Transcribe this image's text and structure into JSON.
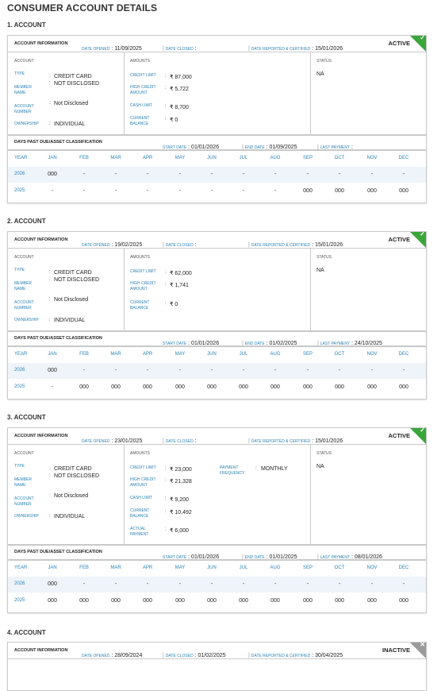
{
  "page_title": "CONSUMER ACCOUNT DETAILS",
  "labels": {
    "account_information": "ACCOUNT INFORMATION",
    "date_opened": "DATE OPENED",
    "date_closed": "DATE CLOSED",
    "date_reported": "DATE REPORTED & CERTIFIED",
    "account_col": "ACCOUNT",
    "amounts_col": "AMOUNTS",
    "status_col": "STATUS",
    "type": "TYPE",
    "member_name": "MEMBER NAME",
    "account_number": "ACCOUNT NUMBER",
    "ownership": "OWNERSHIP",
    "credit_limit": "CREDIT LIMIT",
    "high_credit": "HIGH CREDIT AMOUNT",
    "cash_limit": "CASH LIMIT",
    "current_balance": "CURRENT BALANCE",
    "actual_payment": "ACTUAL PAYMENT",
    "payment_frequency": "PAYMENT FREQUENCY",
    "dpd_title": "DAYS PAST DUE/ASSET CLASSIFICATION",
    "start_date": "START DATE",
    "end_date": "END DATE",
    "last_payment": "LAST PAYMENT",
    "year": "YEAR",
    "months": [
      "JAN",
      "FEB",
      "MAR",
      "APR",
      "MAY",
      "JUN",
      "JUL",
      "AUG",
      "SEP",
      "OCT",
      "NOV",
      "DEC"
    ]
  },
  "accounts": [
    {
      "heading": "1. ACCOUNT",
      "status": "ACTIVE",
      "status_color": "#3aa63a",
      "date_opened": "11/09/2025",
      "date_closed": "",
      "date_reported": "15/01/2026",
      "type": "CREDIT CARD",
      "member_name": "NOT DISCLOSED",
      "account_number": "Not Disclosed",
      "ownership": "INDIVIDUAL",
      "credit_limit": "₹ 87,000",
      "high_credit": "₹ 5,722",
      "cash_limit": "₹ 8,700",
      "current_balance": "₹ 0",
      "status_value": "NA",
      "start_date": "01/01/2026",
      "end_date": "01/09/2025",
      "last_payment": "",
      "dpd": [
        {
          "year": "2026",
          "values": [
            "000",
            "-",
            "-",
            "-",
            "-",
            "-",
            "-",
            "-",
            "-",
            "-",
            "-",
            "-"
          ]
        },
        {
          "year": "2025",
          "values": [
            "-",
            "-",
            "-",
            "-",
            "-",
            "-",
            "-",
            "-",
            "000",
            "000",
            "000",
            "000"
          ]
        }
      ]
    },
    {
      "heading": "2. ACCOUNT",
      "status": "ACTIVE",
      "status_color": "#3aa63a",
      "date_opened": "19/02/2025",
      "date_closed": "",
      "date_reported": "15/01/2026",
      "type": "CREDIT CARD",
      "member_name": "NOT DISCLOSED",
      "account_number": "Not Disclosed",
      "ownership": "INDIVIDUAL",
      "credit_limit": "₹ 62,000",
      "high_credit": "₹ 1,741",
      "current_balance": "₹ 0",
      "status_value": "NA",
      "start_date": "01/01/2026",
      "end_date": "01/02/2025",
      "last_payment": "24/10/2025",
      "dpd": [
        {
          "year": "2026",
          "values": [
            "000",
            "-",
            "-",
            "-",
            "-",
            "-",
            "-",
            "-",
            "-",
            "-",
            "-",
            "-"
          ]
        },
        {
          "year": "2025",
          "values": [
            "-",
            "000",
            "000",
            "000",
            "000",
            "000",
            "000",
            "000",
            "000",
            "000",
            "000",
            "000"
          ]
        }
      ]
    },
    {
      "heading": "3. ACCOUNT",
      "status": "ACTIVE",
      "status_color": "#3aa63a",
      "date_opened": "23/01/2025",
      "date_closed": "",
      "date_reported": "15/01/2026",
      "type": "CREDIT CARD",
      "member_name": "NOT DISCLOSED",
      "account_number": "Not Disclosed",
      "ownership": "INDIVIDUAL",
      "credit_limit": "₹ 23,000",
      "high_credit": "₹ 21,328",
      "cash_limit": "₹ 9,200",
      "current_balance": "₹ 10,492",
      "actual_payment": "₹ 6,000",
      "payment_frequency": "MONTHLY",
      "status_value": "NA",
      "start_date": "01/01/2026",
      "end_date": "01/01/2025",
      "last_payment": "08/01/2026",
      "dpd": [
        {
          "year": "2026",
          "values": [
            "000",
            "-",
            "-",
            "-",
            "-",
            "-",
            "-",
            "-",
            "-",
            "-",
            "-",
            "-"
          ]
        },
        {
          "year": "2025",
          "values": [
            "000",
            "000",
            "000",
            "000",
            "000",
            "000",
            "000",
            "000",
            "000",
            "000",
            "000",
            "000"
          ]
        }
      ]
    },
    {
      "heading": "4. ACCOUNT",
      "status": "INACTIVE",
      "status_color": "#9a9a9a",
      "date_opened": "28/09/2024",
      "date_closed": "01/02/2025",
      "date_reported": "30/04/2025"
    }
  ]
}
